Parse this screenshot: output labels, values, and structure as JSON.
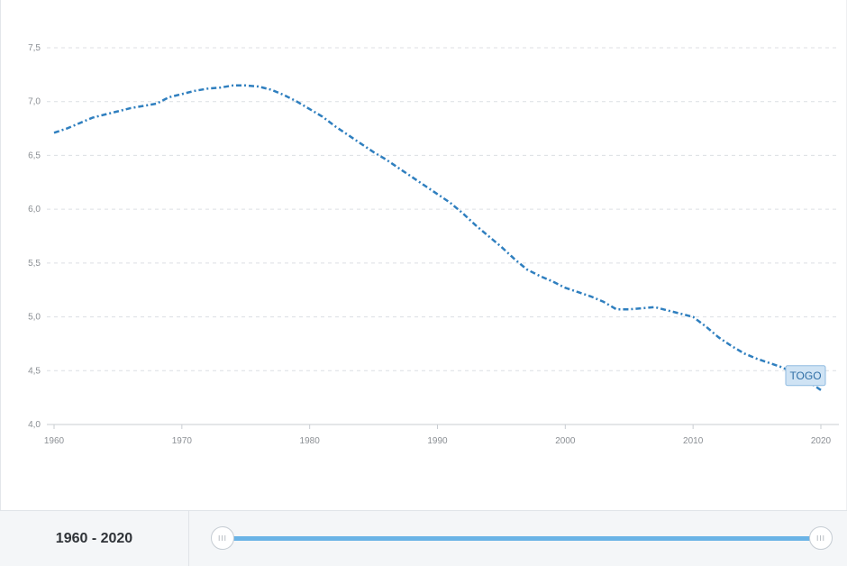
{
  "chart_data": {
    "type": "line",
    "title": "",
    "xlabel": "",
    "ylabel": "",
    "xlim": [
      1960,
      2020
    ],
    "ylim": [
      4.0,
      7.5
    ],
    "grid": true,
    "x_ticks": [
      1960,
      1970,
      1980,
      1990,
      2000,
      2010,
      2020
    ],
    "y_ticks": [
      "4,0",
      "4,5",
      "5,0",
      "5,5",
      "6,0",
      "6,5",
      "7,0",
      "7,5"
    ],
    "y_tick_values": [
      4.0,
      4.5,
      5.0,
      5.5,
      6.0,
      6.5,
      7.0,
      7.5
    ],
    "series": [
      {
        "name": "TOGO",
        "color": "#2f7fbf",
        "x": [
          1960,
          1961,
          1962,
          1963,
          1964,
          1965,
          1966,
          1967,
          1968,
          1969,
          1970,
          1971,
          1972,
          1973,
          1974,
          1975,
          1976,
          1977,
          1978,
          1979,
          1980,
          1981,
          1982,
          1983,
          1984,
          1985,
          1986,
          1987,
          1988,
          1989,
          1990,
          1991,
          1992,
          1993,
          1994,
          1995,
          1996,
          1997,
          1998,
          1999,
          2000,
          2001,
          2002,
          2003,
          2004,
          2005,
          2006,
          2007,
          2008,
          2009,
          2010,
          2011,
          2012,
          2013,
          2014,
          2015,
          2016,
          2017,
          2018,
          2019,
          2020
        ],
        "values": [
          6.71,
          6.75,
          6.8,
          6.85,
          6.88,
          6.91,
          6.94,
          6.96,
          6.98,
          7.04,
          7.07,
          7.1,
          7.12,
          7.13,
          7.15,
          7.15,
          7.14,
          7.11,
          7.06,
          7.0,
          6.93,
          6.86,
          6.77,
          6.69,
          6.61,
          6.53,
          6.46,
          6.38,
          6.3,
          6.22,
          6.14,
          6.06,
          5.96,
          5.85,
          5.75,
          5.65,
          5.54,
          5.44,
          5.38,
          5.33,
          5.27,
          5.23,
          5.19,
          5.14,
          5.07,
          5.07,
          5.08,
          5.09,
          5.06,
          5.03,
          5.0,
          4.91,
          4.81,
          4.73,
          4.66,
          4.61,
          4.57,
          4.53,
          4.47,
          4.4,
          4.32
        ]
      }
    ]
  },
  "series_label": "TOGO",
  "range_label": "1960 - 2020",
  "slider": {
    "start_fraction": 0.0,
    "end_fraction": 1.0,
    "handle_glyph": "III"
  },
  "colors": {
    "accent": "#6ab3e6",
    "line": "#2f7fbf",
    "grid": "#dcdfe3"
  }
}
